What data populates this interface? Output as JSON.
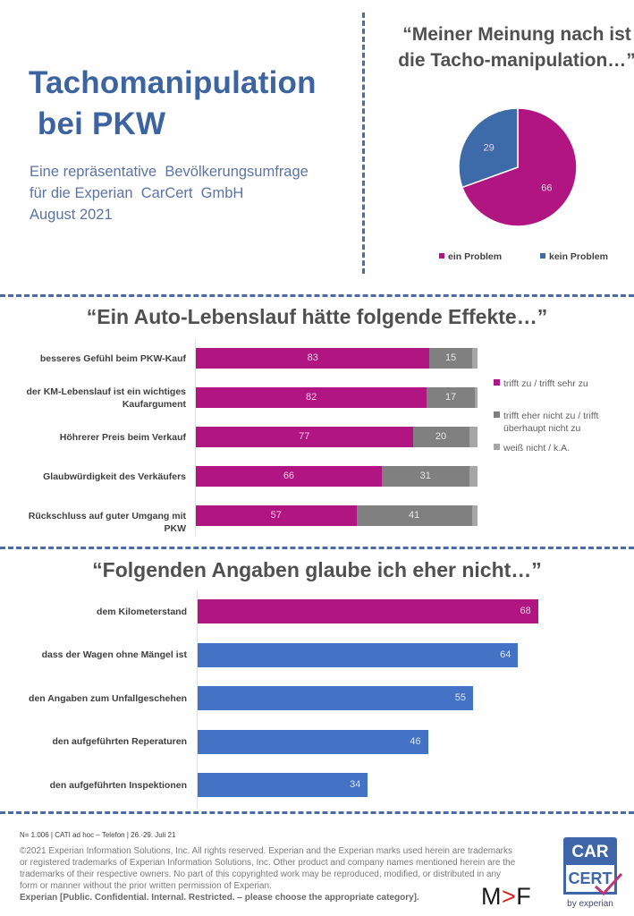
{
  "header": {
    "title": "Tachomanipulation\n bei PKW",
    "subtitle": "Eine repräsentative  Bevölkerungsumfrage\nfür die Experian  CarCert  GmbH\nAugust 2021"
  },
  "colors": {
    "magenta": "#b01581",
    "blue": "#4472c4",
    "pie_blue": "#3d6aa8",
    "dark_gray": "#808080",
    "light_gray": "#a6a6a6",
    "divider": "#4a6aa8"
  },
  "chart_data": [
    {
      "type": "pie",
      "title": "“Meiner Meinung nach ist die Tacho-manipulation…”",
      "categories": [
        "ein Problem",
        "kein Problem"
      ],
      "values": [
        66,
        29
      ],
      "colors": [
        "#b01581",
        "#3d6aa8"
      ],
      "legend": "bottom"
    },
    {
      "type": "bar",
      "orientation": "horizontal",
      "stacked": true,
      "title": "“Ein Auto-Lebenslauf hätte folgende Effekte…”",
      "categories": [
        "besseres Gefühl beim PKW-Kauf",
        "der KM-Lebenslauf ist ein wichtiges Kaufargument",
        "Höhrerer Preis beim Verkauf",
        "Glaubwürdigkeit des Verkäufers",
        "Rückschluss auf guter Umgang mit PKW"
      ],
      "series": [
        {
          "name": "trifft zu / trifft sehr zu",
          "values": [
            83,
            82,
            77,
            66,
            57
          ],
          "color": "#b01581",
          "labeled": true
        },
        {
          "name": "trifft eher nicht zu / trifft überhaupt nicht zu",
          "values": [
            15,
            17,
            20,
            31,
            41
          ],
          "color": "#808080",
          "labeled": true
        },
        {
          "name": "weiß nicht / k.A.",
          "values": [
            2,
            1,
            3,
            3,
            2
          ],
          "color": "#a6a6a6",
          "labeled": false
        }
      ],
      "xlim": [
        0,
        100
      ],
      "legend": "right",
      "grid": false
    },
    {
      "type": "bar",
      "orientation": "horizontal",
      "title": "“Folgenden Angaben glaube ich eher nicht…”",
      "categories": [
        "dem Kilometerstand",
        "dass der Wagen ohne Mängel ist",
        "den Angaben zum Unfallgeschehen",
        "den aufgeführten Reperaturen",
        "den aufgeführten Inspektionen"
      ],
      "values": [
        68,
        64,
        55,
        46,
        34
      ],
      "colors": [
        "#b01581",
        "#4472c4",
        "#4472c4",
        "#4472c4",
        "#4472c4"
      ],
      "xlim": [
        0,
        100
      ],
      "grid": false
    }
  ],
  "footer": {
    "sample": "N= 1.006 | CATI ad hoc – Telefon | 26.-29. Juli 21",
    "copyright": "©2021 Experian Information Solutions, Inc. All rights reserved. Experian and the Experian marks used herein are trademarks or registered trademarks of Experian Information Solutions, Inc. Other product and company names mentioned herein are the trademarks of their respective owners. No part of this copyrighted work may be reproduced, modified, or distributed in any form or manner without the prior written permission of Experian.",
    "classification": "Experian [Public. Confidential. Internal. Restricted. – please choose the appropriate category].",
    "mf_logo": {
      "left": "M",
      "mid": ">",
      "right": "F"
    },
    "carcert_logo": {
      "top": "CAR",
      "bottom": "CERT",
      "by": "by experian"
    }
  }
}
